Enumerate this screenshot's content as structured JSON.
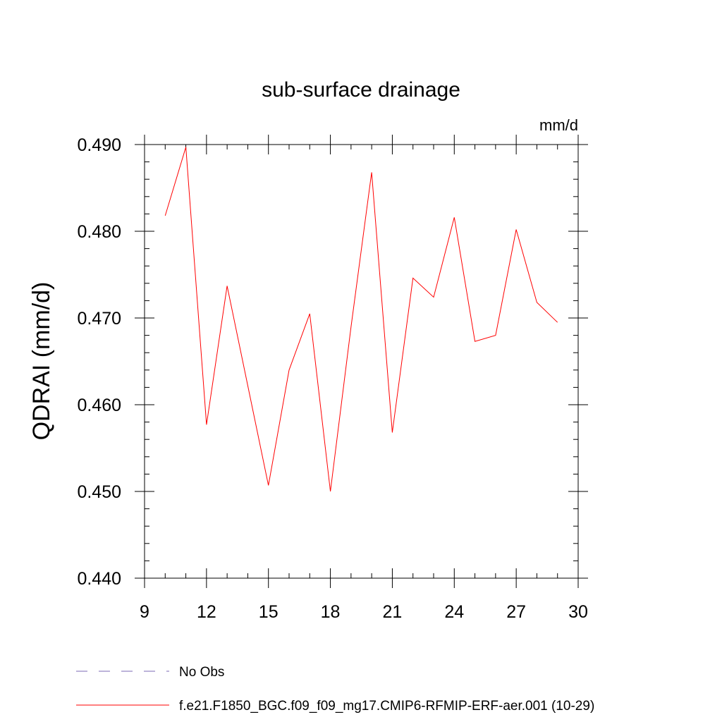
{
  "chart_data": {
    "type": "line",
    "title": "sub-surface drainage",
    "units_label": "mm/d",
    "ylabel": "QDRAI  (mm/d)",
    "xlabel": "",
    "xlim": [
      9,
      30
    ],
    "ylim": [
      0.44,
      0.49
    ],
    "x_ticks": [
      9,
      12,
      15,
      18,
      21,
      24,
      27,
      30
    ],
    "y_ticks": [
      0.44,
      0.45,
      0.46,
      0.47,
      0.48,
      0.49
    ],
    "y_tick_labels": [
      "0.440",
      "0.450",
      "0.460",
      "0.470",
      "0.480",
      "0.490"
    ],
    "grid": false,
    "legend_position": "bottom",
    "series": [
      {
        "name": "f.e21.F1850_BGC.f09_f09_mg17.CMIP6-RFMIP-ERF-aer.001 (10-29)",
        "color": "#ff0000",
        "style": "solid",
        "x": [
          10,
          11,
          12,
          13,
          14,
          15,
          16,
          17,
          18,
          19,
          20,
          21,
          22,
          23,
          24,
          25,
          26,
          27,
          28,
          29
        ],
        "values": [
          0.4818,
          0.4897,
          0.4577,
          0.4737,
          0.4622,
          0.4507,
          0.464,
          0.4705,
          0.45,
          0.469,
          0.4868,
          0.4568,
          0.4746,
          0.4724,
          0.4816,
          0.4673,
          0.468,
          0.4802,
          0.4718,
          0.4695
        ]
      }
    ],
    "legend": [
      {
        "label": "No Obs",
        "color": "#7b68b5",
        "style": "dashed"
      },
      {
        "label": "f.e21.F1850_BGC.f09_f09_mg17.CMIP6-RFMIP-ERF-aer.001 (10-29)",
        "color": "#ff0000",
        "style": "solid"
      }
    ]
  }
}
